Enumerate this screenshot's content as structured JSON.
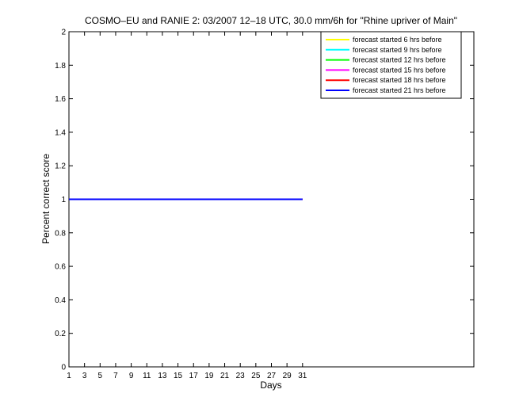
{
  "chart_data": {
    "type": "line",
    "title": "COSMO–EU and RANIE 2: 03/2007 12–18 UTC, 30.0 mm/6h for \"Rhine upriver of Main\"",
    "xlabel": "Days",
    "ylabel": "Percent correct score",
    "xlim": [
      1,
      53
    ],
    "ylim": [
      0,
      2
    ],
    "xticks": [
      1,
      3,
      5,
      7,
      9,
      11,
      13,
      15,
      17,
      19,
      21,
      23,
      25,
      27,
      29,
      31
    ],
    "yticks": [
      0,
      0.2,
      0.4,
      0.6,
      0.8,
      1,
      1.2,
      1.4,
      1.6,
      1.8,
      2
    ],
    "ytick_labels": [
      "0",
      "0.2",
      "0.4",
      "0.6",
      "0.8",
      "1",
      "1.2",
      "1.4",
      "1.6",
      "1.8",
      "2"
    ],
    "grid": false,
    "legend_position": "top-right",
    "series": [
      {
        "name": "forecast started 6 hrs before",
        "color": "#ffff00",
        "x": [
          1,
          31
        ],
        "y": [
          1,
          1
        ]
      },
      {
        "name": "forecast started 9 hrs before",
        "color": "#00ffff",
        "x": [
          1,
          31
        ],
        "y": [
          1,
          1
        ]
      },
      {
        "name": "forecast started 12 hrs before",
        "color": "#00ff00",
        "x": [
          1,
          31
        ],
        "y": [
          1,
          1
        ]
      },
      {
        "name": "forecast started 15 hrs before",
        "color": "#ff00ff",
        "x": [
          1,
          31
        ],
        "y": [
          1,
          1
        ]
      },
      {
        "name": "forecast started 18 hrs before",
        "color": "#ff0000",
        "x": [
          1,
          31
        ],
        "y": [
          1,
          1
        ]
      },
      {
        "name": "forecast started 21 hrs before",
        "color": "#0000ff",
        "x": [
          1,
          31
        ],
        "y": [
          1,
          1
        ]
      }
    ]
  }
}
